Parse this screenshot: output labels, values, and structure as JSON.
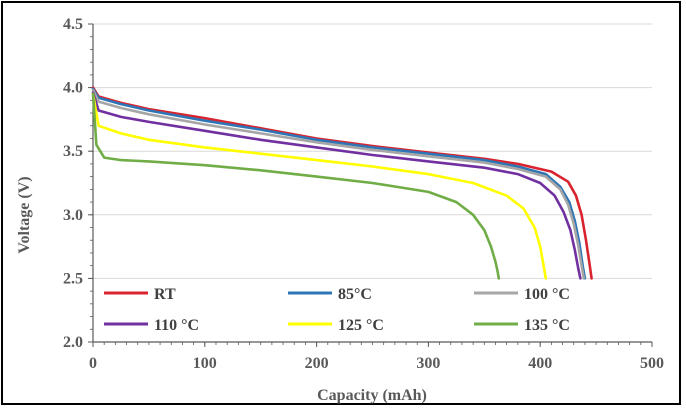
{
  "chart_data": {
    "type": "line",
    "title": "",
    "xlabel": "Capacity  (mAh)",
    "ylabel": "Voltage (V)",
    "xlim": [
      0,
      500
    ],
    "ylim": [
      2.0,
      4.5
    ],
    "xticks": [
      0,
      100,
      200,
      300,
      400,
      500
    ],
    "yticks": [
      2.0,
      2.5,
      3.0,
      3.5,
      4.0,
      4.5
    ],
    "xtick_labels": [
      "0",
      "100",
      "200",
      "300",
      "400",
      "500"
    ],
    "ytick_labels": [
      "2.0",
      "2.5",
      "3.0",
      "3.5",
      "4.0",
      "4.5"
    ],
    "grid": "horizontal",
    "legend_position": "bottom (inside plot, two rows)",
    "series": [
      {
        "name": "RT",
        "color": "#d9232e",
        "x": [
          0,
          5,
          25,
          50,
          100,
          150,
          200,
          250,
          300,
          350,
          380,
          410,
          425,
          432,
          437,
          441,
          444,
          446
        ],
        "y": [
          4.0,
          3.93,
          3.88,
          3.83,
          3.76,
          3.68,
          3.6,
          3.54,
          3.49,
          3.44,
          3.4,
          3.34,
          3.26,
          3.15,
          3.0,
          2.8,
          2.62,
          2.5
        ]
      },
      {
        "name": "85°C",
        "color": "#2e75b6",
        "x": [
          0,
          5,
          25,
          50,
          100,
          150,
          200,
          250,
          300,
          350,
          380,
          405,
          418,
          426,
          431,
          435,
          438,
          440
        ],
        "y": [
          3.99,
          3.92,
          3.87,
          3.82,
          3.74,
          3.67,
          3.59,
          3.53,
          3.48,
          3.43,
          3.38,
          3.32,
          3.22,
          3.1,
          2.95,
          2.78,
          2.6,
          2.5
        ]
      },
      {
        "name": "100 °C",
        "color": "#a6a6a6",
        "x": [
          0,
          5,
          25,
          50,
          100,
          150,
          200,
          250,
          300,
          350,
          380,
          405,
          418,
          425,
          430,
          434,
          437,
          439
        ],
        "y": [
          3.98,
          3.89,
          3.84,
          3.79,
          3.71,
          3.64,
          3.57,
          3.51,
          3.46,
          3.41,
          3.36,
          3.3,
          3.2,
          3.08,
          2.93,
          2.76,
          2.6,
          2.5
        ]
      },
      {
        "name": "110 °C",
        "color": "#7030a0",
        "x": [
          0,
          5,
          25,
          50,
          100,
          150,
          200,
          250,
          300,
          350,
          380,
          400,
          413,
          421,
          427,
          431,
          434,
          436
        ],
        "y": [
          3.96,
          3.82,
          3.77,
          3.73,
          3.66,
          3.59,
          3.53,
          3.47,
          3.42,
          3.37,
          3.32,
          3.25,
          3.15,
          3.02,
          2.88,
          2.72,
          2.58,
          2.5
        ]
      },
      {
        "name": "125 °C",
        "color": "#ffff00",
        "x": [
          0,
          5,
          25,
          50,
          100,
          150,
          200,
          250,
          300,
          340,
          370,
          385,
          395,
          400,
          403,
          405
        ],
        "y": [
          3.95,
          3.7,
          3.64,
          3.59,
          3.53,
          3.48,
          3.43,
          3.38,
          3.32,
          3.25,
          3.15,
          3.05,
          2.9,
          2.75,
          2.6,
          2.5
        ]
      },
      {
        "name": "135 °C",
        "color": "#70ad47",
        "x": [
          0,
          3,
          10,
          25,
          50,
          100,
          150,
          200,
          250,
          300,
          325,
          340,
          350,
          356,
          360,
          362,
          363
        ],
        "y": [
          3.95,
          3.55,
          3.45,
          3.43,
          3.42,
          3.39,
          3.35,
          3.3,
          3.25,
          3.18,
          3.1,
          3.0,
          2.88,
          2.75,
          2.63,
          2.55,
          2.5
        ]
      }
    ]
  }
}
